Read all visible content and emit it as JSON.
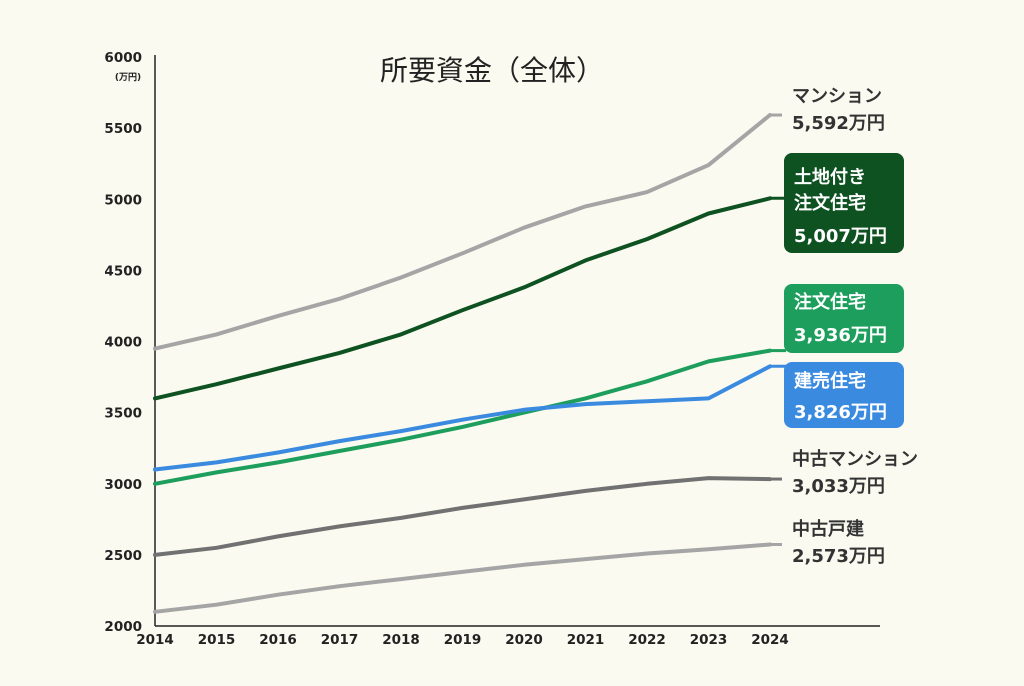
{
  "chart_data": {
    "type": "line",
    "title": "所要資金（全体）",
    "ylabel": "",
    "y_unit": "(万円)",
    "xlabel": "",
    "x": [
      2014,
      2015,
      2016,
      2017,
      2018,
      2019,
      2020,
      2021,
      2022,
      2023,
      2024
    ],
    "ylim": [
      2000,
      6000
    ],
    "yticks": [
      2000,
      2500,
      3000,
      3500,
      4000,
      4500,
      5000,
      5500,
      6000
    ],
    "grid": false,
    "legend": "right (inline labels at line ends)",
    "series": [
      {
        "name": "マンション",
        "label_lines": [
          "マンション",
          "5,592万円"
        ],
        "color": "#a5a5a5",
        "label_box": false,
        "values": [
          3950,
          4050,
          4180,
          4300,
          4450,
          4620,
          4800,
          4950,
          5050,
          5240,
          5592
        ]
      },
      {
        "name": "土地付き注文住宅",
        "label_lines": [
          "土地付き",
          "注文住宅",
          "5,007万円"
        ],
        "color": "#0e5222",
        "label_box": true,
        "values": [
          3600,
          3700,
          3810,
          3920,
          4050,
          4220,
          4380,
          4570,
          4720,
          4900,
          5007
        ]
      },
      {
        "name": "注文住宅",
        "label_lines": [
          "注文住宅",
          "3,936万円"
        ],
        "color": "#1d9e5c",
        "label_box": true,
        "values": [
          3000,
          3080,
          3150,
          3230,
          3310,
          3400,
          3500,
          3600,
          3720,
          3860,
          3936
        ]
      },
      {
        "name": "建売住宅",
        "label_lines": [
          "建売住宅",
          "3,826万円"
        ],
        "color": "#3a8be0",
        "label_box": true,
        "values": [
          3100,
          3150,
          3220,
          3300,
          3370,
          3450,
          3520,
          3560,
          3580,
          3600,
          3826
        ]
      },
      {
        "name": "中古マンション",
        "label_lines": [
          "中古マンション",
          "3,033万円"
        ],
        "color": "#717171",
        "label_box": false,
        "values": [
          2500,
          2550,
          2630,
          2700,
          2760,
          2830,
          2890,
          2950,
          3000,
          3040,
          3033
        ]
      },
      {
        "name": "中古戸建",
        "label_lines": [
          "中古戸建",
          "2,573万円"
        ],
        "color": "#a5a5a5",
        "label_box": false,
        "values": [
          2100,
          2150,
          2220,
          2280,
          2330,
          2380,
          2430,
          2470,
          2510,
          2540,
          2573
        ]
      }
    ]
  }
}
